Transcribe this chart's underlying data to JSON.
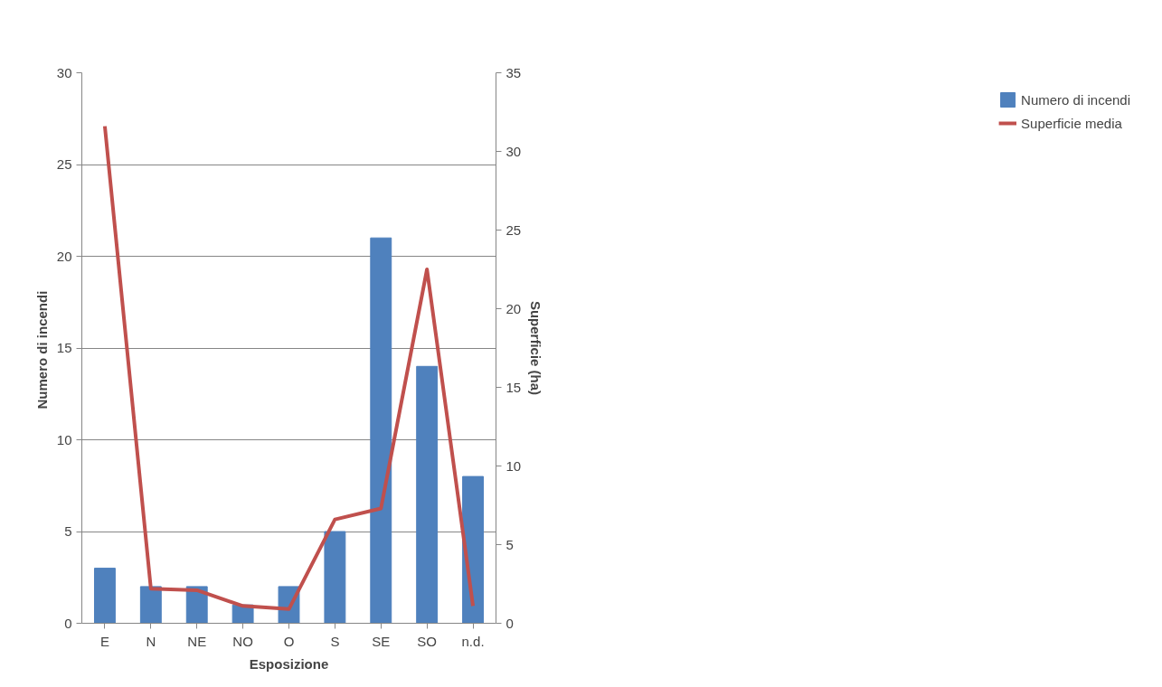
{
  "chart_data": {
    "type": "bar",
    "xlabel": "Esposizione",
    "ylabel": "Numero  di incendi",
    "y2label": "Superficie (ha)",
    "categories": [
      "E",
      "N",
      "NE",
      "NO",
      "O",
      "S",
      "SE",
      "SO",
      "n.d."
    ],
    "series": [
      {
        "name": "Numero di incendi",
        "color": "#4f81bd",
        "values": [
          3,
          2,
          2,
          1,
          2,
          5,
          21,
          14,
          8
        ]
      },
      {
        "name": "Superficie media",
        "type": "line",
        "axis": "y2",
        "color": "#c0504d",
        "values": [
          31.6,
          2.2,
          2.1,
          1.1,
          0.9,
          6.6,
          7.3,
          22.5,
          1.1
        ]
      }
    ],
    "ylim": [
      0,
      30
    ],
    "yticks": [
      0,
      5,
      10,
      15,
      20,
      25,
      30
    ],
    "y2lim": [
      0,
      35
    ],
    "y2ticks": [
      0,
      5,
      10,
      15,
      20,
      25,
      30,
      35
    ],
    "grid": "y",
    "legend": "right"
  }
}
